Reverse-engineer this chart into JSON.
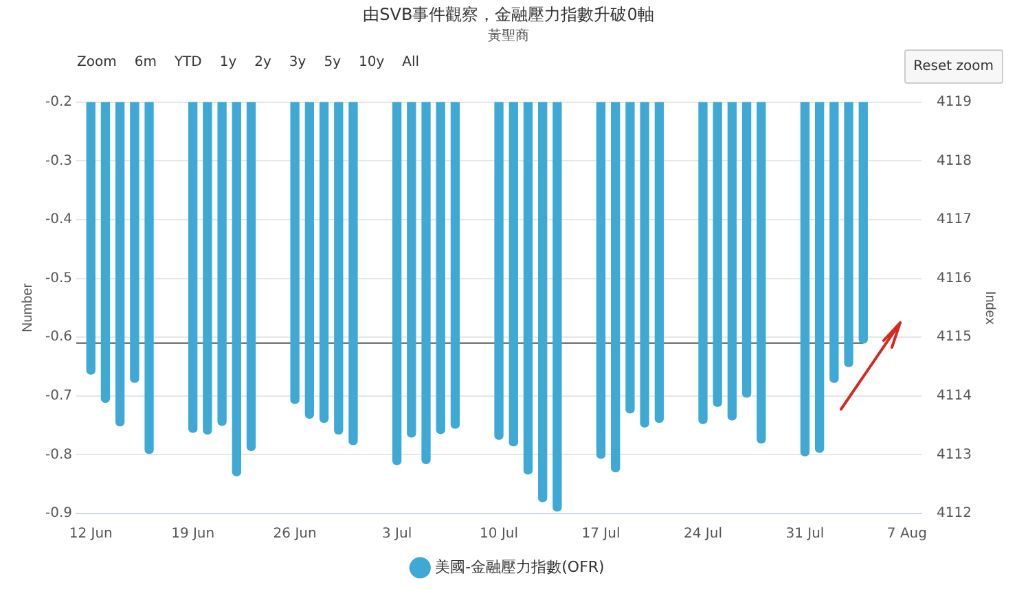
{
  "chart_data": {
    "type": "bar",
    "title": "由SVB事件觀察，金融壓力指數升破0軸",
    "subtitle": "黃聖商",
    "ylabel": "Number",
    "y2label": "Index",
    "annotations": [
      "Zoom",
      "6m",
      "YTD",
      "1y",
      "2y",
      "3y",
      "5y",
      "10y",
      "All",
      "Reset zoom"
    ],
    "x": [
      "--06-12",
      "--06-13",
      "--06-14",
      "--06-15",
      "--06-16",
      "--06-19",
      "--06-20",
      "--06-21",
      "--06-22",
      "--06-23",
      "--06-26",
      "--06-27",
      "--06-28",
      "--06-29",
      "--06-30",
      "--07-03",
      "--07-04",
      "--07-05",
      "--07-06",
      "--07-07",
      "--07-10",
      "--07-11",
      "--07-12",
      "--07-13",
      "--07-14",
      "--07-17",
      "--07-18",
      "--07-19",
      "--07-20",
      "--07-21",
      "--07-24",
      "--07-25",
      "--07-26",
      "--07-27",
      "--07-28",
      "--07-31",
      "--08-01",
      "--08-02",
      "--08-03",
      "--08-04"
    ],
    "series": [
      {
        "name": "美國-金融壓力指數(OFR)",
        "color": "#3fa9d5",
        "values": [
          -0.663,
          -0.711,
          -0.751,
          -0.677,
          -0.798,
          -0.762,
          -0.765,
          -0.75,
          -0.836,
          -0.793,
          -0.713,
          -0.738,
          -0.745,
          -0.765,
          -0.783,
          -0.817,
          -0.77,
          -0.815,
          -0.764,
          -0.755,
          -0.774,
          -0.785,
          -0.833,
          -0.88,
          -0.896,
          -0.806,
          -0.829,
          -0.729,
          -0.753,
          -0.745,
          -0.747,
          -0.718,
          -0.741,
          -0.702,
          -0.78,
          -0.802,
          -0.796,
          -0.677,
          -0.65,
          -0.61
        ]
      },
      {
        "type": "line",
        "axis": "y2",
        "color": "#555555",
        "x": [
          "--06-11",
          "--08-04"
        ],
        "values": [
          4114.9,
          4114.9
        ],
        "marker": "none"
      }
    ],
    "xlim": [
      "--06-11",
      "--08-08"
    ],
    "xticks": [
      {
        "value": "--06-12",
        "label": "12 Jun"
      },
      {
        "value": "--06-19",
        "label": "19 Jun"
      },
      {
        "value": "--06-26",
        "label": "26 Jun"
      },
      {
        "value": "--07-03",
        "label": "3 Jul"
      },
      {
        "value": "--07-10",
        "label": "10 Jul"
      },
      {
        "value": "--07-17",
        "label": "17 Jul"
      },
      {
        "value": "--07-24",
        "label": "24 Jul"
      },
      {
        "value": "--07-31",
        "label": "31 Jul"
      },
      {
        "value": "--08-07",
        "label": "7 Aug"
      }
    ],
    "ylim": [
      -0.9,
      -0.2
    ],
    "yticks": [
      -0.9,
      -0.8,
      -0.7,
      -0.6,
      -0.5,
      -0.4,
      -0.3,
      -0.2
    ],
    "y2lim": [
      4112,
      4119
    ],
    "y2ticks": [
      4112,
      4113,
      4114,
      4115,
      4116,
      4117,
      4118,
      4119
    ],
    "grid": "y",
    "legend": "bottom"
  }
}
